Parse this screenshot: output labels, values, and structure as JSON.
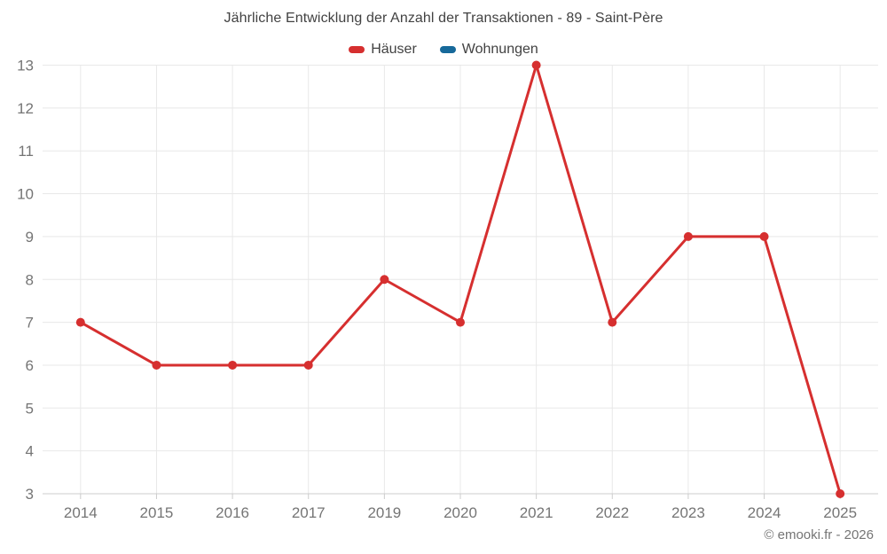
{
  "title": "Jährliche Entwicklung der Anzahl der Transaktionen - 89 - Saint-Père",
  "legend": {
    "items": [
      {
        "label": "Häuser",
        "color": "#d62f2f"
      },
      {
        "label": "Wohnungen",
        "color": "#17699a"
      }
    ]
  },
  "footer": {
    "copyright": "© emooki.fr - 2026"
  },
  "colors": {
    "grid": "#e8e8e8",
    "axis": "#cccccc",
    "tick": "#cccccc",
    "tick_label": "#757575",
    "title_text": "#424242",
    "background": "#ffffff"
  },
  "chart_data": {
    "type": "line",
    "title": "Jährliche Entwicklung der Anzahl der Transaktionen - 89 - Saint-Père",
    "categories": [
      "2014",
      "2015",
      "2016",
      "2017",
      "2019",
      "2020",
      "2021",
      "2022",
      "2023",
      "2024",
      "2025"
    ],
    "series": [
      {
        "name": "Häuser",
        "color": "#d62f2f",
        "values": [
          7,
          6,
          6,
          6,
          8,
          7,
          13,
          7,
          9,
          9,
          3
        ]
      },
      {
        "name": "Wohnungen",
        "color": "#17699a",
        "values": []
      }
    ],
    "xlabel": "",
    "ylabel": "",
    "ylim": [
      3,
      13
    ],
    "yticks": [
      3,
      4,
      5,
      6,
      7,
      8,
      9,
      10,
      11,
      12,
      13
    ],
    "grid": true,
    "legend_position": "top",
    "marker_radius": 5,
    "line_width": 3
  }
}
